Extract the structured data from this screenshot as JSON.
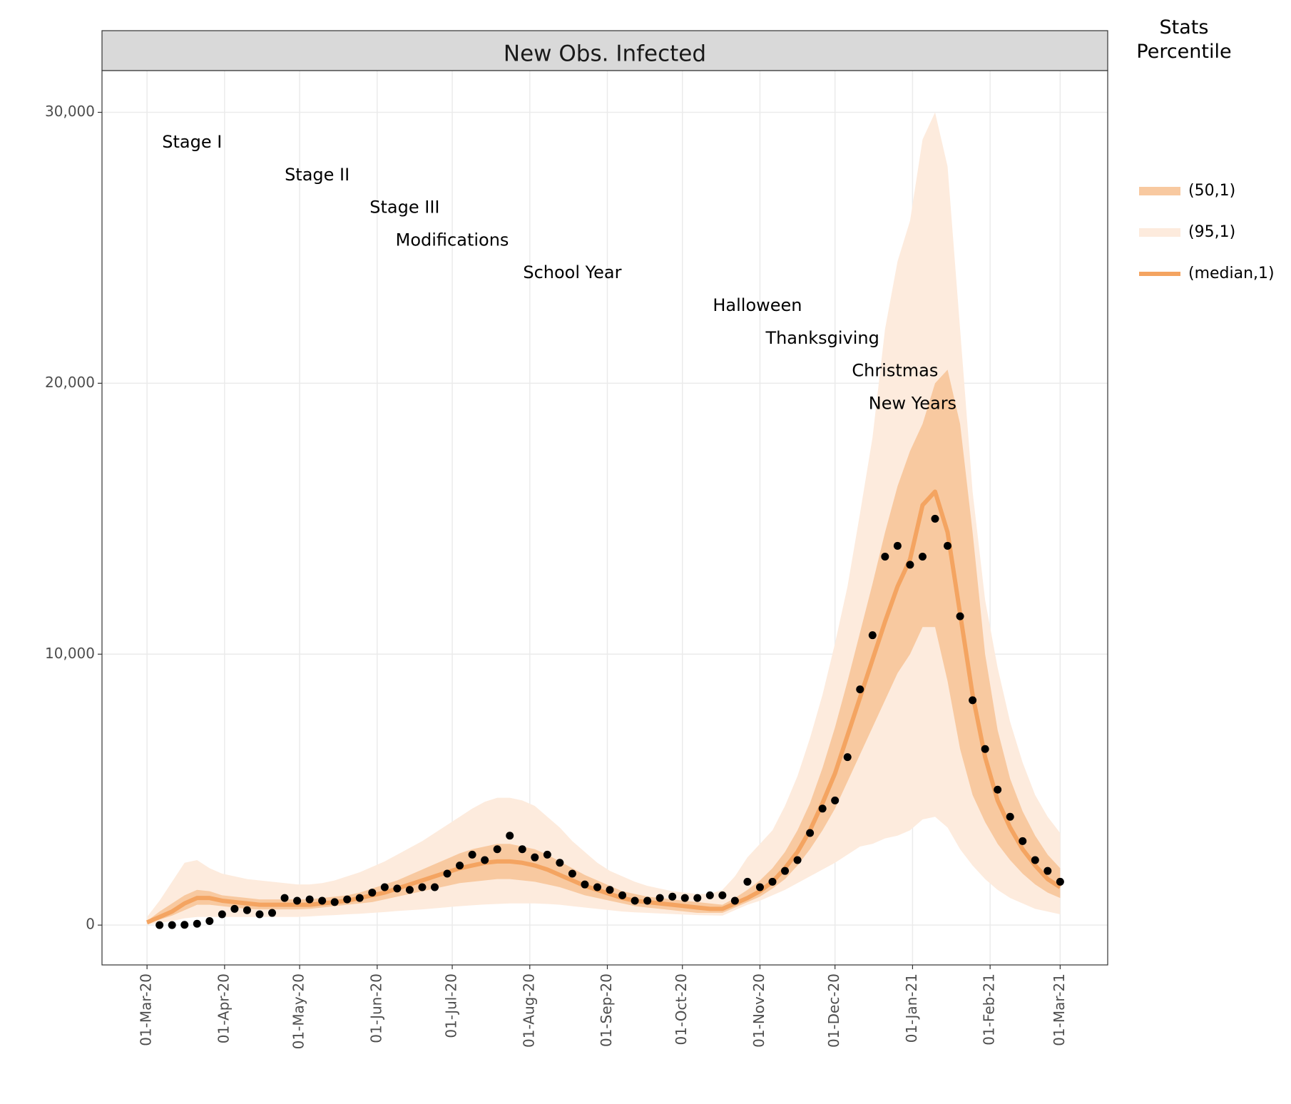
{
  "chart_data": {
    "type": "band-line-scatter",
    "title": "New Obs. Infected",
    "legend_title": "Stats Percentile",
    "xlim": [
      "12-Feb-20",
      "20-Mar-21"
    ],
    "ylim": [
      -1470,
      31540
    ],
    "xticks": [
      "01-Mar-20",
      "01-Apr-20",
      "01-May-20",
      "01-Jun-20",
      "01-Jul-20",
      "01-Aug-20",
      "01-Sep-20",
      "01-Oct-20",
      "01-Nov-20",
      "01-Dec-20",
      "01-Jan-21",
      "01-Feb-21",
      "01-Mar-21"
    ],
    "yticks": [
      0,
      {
        "value": 10000,
        "label": "10,000"
      },
      {
        "value": 20000,
        "label": "20,000"
      },
      {
        "value": 30000,
        "label": "30,000"
      }
    ],
    "grid": true,
    "x": [
      "01-Mar-20",
      "06-Mar-20",
      "11-Mar-20",
      "16-Mar-20",
      "21-Mar-20",
      "26-Mar-20",
      "31-Mar-20",
      "05-Apr-20",
      "10-Apr-20",
      "15-Apr-20",
      "20-Apr-20",
      "25-Apr-20",
      "30-Apr-20",
      "05-May-20",
      "10-May-20",
      "15-May-20",
      "20-May-20",
      "25-May-20",
      "30-May-20",
      "04-Jun-20",
      "09-Jun-20",
      "14-Jun-20",
      "19-Jun-20",
      "24-Jun-20",
      "29-Jun-20",
      "04-Jul-20",
      "09-Jul-20",
      "14-Jul-20",
      "19-Jul-20",
      "24-Jul-20",
      "29-Jul-20",
      "03-Aug-20",
      "08-Aug-20",
      "13-Aug-20",
      "18-Aug-20",
      "23-Aug-20",
      "28-Aug-20",
      "02-Sep-20",
      "07-Sep-20",
      "12-Sep-20",
      "17-Sep-20",
      "22-Sep-20",
      "27-Sep-20",
      "02-Oct-20",
      "07-Oct-20",
      "12-Oct-20",
      "17-Oct-20",
      "22-Oct-20",
      "27-Oct-20",
      "01-Nov-20",
      "06-Nov-20",
      "11-Nov-20",
      "16-Nov-20",
      "21-Nov-20",
      "26-Nov-20",
      "01-Dec-20",
      "06-Dec-20",
      "11-Dec-20",
      "16-Dec-20",
      "21-Dec-20",
      "26-Dec-20",
      "31-Dec-20",
      "05-Jan-21",
      "10-Jan-21",
      "15-Jan-21",
      "20-Jan-21",
      "25-Jan-21",
      "30-Jan-21",
      "04-Feb-21",
      "09-Feb-21",
      "14-Feb-21",
      "19-Feb-21",
      "24-Feb-21",
      "01-Mar-21"
    ],
    "series": [
      {
        "name": "(95,1)",
        "kind": "band",
        "color": "#fdebdd",
        "lower": [
          20,
          80,
          150,
          250,
          300,
          300,
          300,
          300,
          300,
          300,
          300,
          300,
          300,
          320,
          350,
          370,
          400,
          420,
          450,
          480,
          520,
          550,
          580,
          620,
          660,
          700,
          730,
          760,
          780,
          800,
          800,
          800,
          780,
          750,
          700,
          650,
          600,
          550,
          500,
          470,
          450,
          430,
          410,
          390,
          370,
          360,
          350,
          550,
          750,
          900,
          1100,
          1300,
          1550,
          1800,
          2050,
          2300,
          2600,
          2900,
          3000,
          3200,
          3300,
          3500,
          3900,
          4000,
          3600,
          2800,
          2200,
          1700,
          1300,
          1000,
          800,
          600,
          500,
          400
        ],
        "upper": [
          300,
          900,
          1600,
          2300,
          2400,
          2100,
          1900,
          1800,
          1700,
          1650,
          1600,
          1550,
          1500,
          1500,
          1550,
          1650,
          1800,
          1950,
          2150,
          2350,
          2600,
          2850,
          3100,
          3400,
          3700,
          4000,
          4300,
          4550,
          4700,
          4700,
          4600,
          4400,
          4000,
          3600,
          3100,
          2700,
          2300,
          2000,
          1800,
          1600,
          1450,
          1350,
          1250,
          1200,
          1150,
          1150,
          1300,
          1800,
          2500,
          3000,
          3500,
          4400,
          5500,
          6900,
          8500,
          10400,
          12500,
          15200,
          18000,
          22000,
          24500,
          26000,
          29000,
          30000,
          28000,
          22000,
          16000,
          12000,
          9500,
          7500,
          6000,
          4800,
          4000,
          3400
        ]
      },
      {
        "name": "(50,1)",
        "kind": "band",
        "color": "#f8c9a0",
        "lower": [
          50,
          200,
          350,
          550,
          750,
          750,
          700,
          650,
          600,
          580,
          580,
          580,
          580,
          600,
          650,
          700,
          750,
          800,
          850,
          950,
          1050,
          1150,
          1250,
          1350,
          1450,
          1550,
          1600,
          1650,
          1700,
          1700,
          1650,
          1600,
          1500,
          1400,
          1250,
          1100,
          1000,
          900,
          800,
          700,
          650,
          600,
          550,
          500,
          450,
          450,
          450,
          650,
          850,
          1050,
          1350,
          1700,
          2200,
          2800,
          3500,
          4300,
          5300,
          6300,
          7300,
          8300,
          9300,
          10000,
          11000,
          11000,
          9000,
          6500,
          4800,
          3800,
          3000,
          2400,
          1900,
          1500,
          1200,
          1000
        ],
        "upper": [
          150,
          500,
          800,
          1100,
          1300,
          1250,
          1100,
          1050,
          1000,
          950,
          950,
          950,
          950,
          950,
          1000,
          1050,
          1100,
          1200,
          1350,
          1500,
          1650,
          1850,
          2050,
          2250,
          2450,
          2650,
          2800,
          2900,
          3000,
          3000,
          2900,
          2800,
          2600,
          2350,
          2100,
          1850,
          1650,
          1450,
          1250,
          1150,
          1050,
          1000,
          950,
          900,
          850,
          800,
          750,
          1000,
          1300,
          1650,
          2100,
          2700,
          3500,
          4500,
          5800,
          7300,
          9000,
          10800,
          12600,
          14500,
          16200,
          17500,
          18500,
          20000,
          20500,
          18500,
          14500,
          10000,
          7200,
          5400,
          4200,
          3300,
          2600,
          2100
        ]
      },
      {
        "name": "(median,1)",
        "kind": "line",
        "color": "#f4a461",
        "values": [
          100,
          300,
          500,
          800,
          1000,
          1000,
          900,
          850,
          800,
          750,
          750,
          750,
          750,
          750,
          800,
          850,
          900,
          1000,
          1100,
          1200,
          1350,
          1500,
          1650,
          1800,
          1950,
          2100,
          2200,
          2300,
          2350,
          2350,
          2300,
          2200,
          2050,
          1850,
          1650,
          1450,
          1300,
          1150,
          1000,
          900,
          850,
          800,
          750,
          700,
          650,
          600,
          600,
          800,
          1000,
          1250,
          1600,
          2100,
          2700,
          3500,
          4500,
          5600,
          7000,
          8400,
          9800,
          11200,
          12500,
          13500,
          15500,
          16000,
          14500,
          11500,
          8500,
          6200,
          4600,
          3600,
          2800,
          2200,
          1700,
          1400
        ]
      },
      {
        "kind": "points",
        "color": "#000000",
        "values": [
          null,
          0,
          0,
          10,
          50,
          150,
          400,
          600,
          550,
          400,
          450,
          1000,
          900,
          950,
          900,
          850,
          950,
          1000,
          1200,
          1400,
          1350,
          1300,
          1400,
          1400,
          1900,
          2200,
          2600,
          2400,
          2800,
          3300,
          2800,
          2500,
          2600,
          2300,
          1900,
          1500,
          1400,
          1300,
          1100,
          900,
          900,
          1000,
          1050,
          1000,
          1000,
          1100,
          1100,
          900,
          1600,
          1400,
          1600,
          2000,
          2400,
          3400,
          4300,
          4600,
          6200,
          8700,
          10700,
          13600,
          14000,
          13300,
          13600,
          15000,
          14000,
          11400,
          8300,
          6500,
          5000,
          4000,
          3100,
          2400,
          2000,
          1600
        ]
      }
    ],
    "legend_order": [
      1,
      0,
      2
    ],
    "annotations": [
      {
        "text": "Stage I",
        "x": "19-Mar-20"
      },
      {
        "text": "Stage II",
        "x": "08-May-20"
      },
      {
        "text": "Stage III",
        "x": "12-Jun-20"
      },
      {
        "text": "Modifications",
        "x": "01-Jul-20"
      },
      {
        "text": "School Year",
        "x": "18-Aug-20"
      },
      {
        "text": "Halloween",
        "x": "31-Oct-20"
      },
      {
        "text": "Thanksgiving",
        "x": "26-Nov-20"
      },
      {
        "text": "Christmas",
        "x": "25-Dec-20"
      },
      {
        "text": "New Years",
        "x": "01-Jan-21"
      }
    ]
  }
}
